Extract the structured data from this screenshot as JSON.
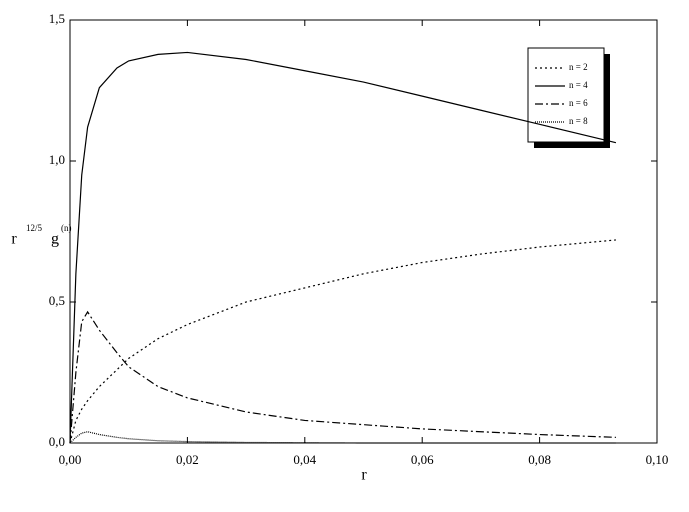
{
  "chart_data": {
    "type": "line",
    "x_label": "r",
    "y_label": {
      "base": "r",
      "power": "12/5",
      "func": "g",
      "func_power": "(n)"
    },
    "x": [
      0,
      0.001,
      0.002,
      0.003,
      0.005,
      0.008,
      0.01,
      0.015,
      0.02,
      0.03,
      0.04,
      0.05,
      0.06,
      0.07,
      0.08,
      0.093
    ],
    "series": [
      {
        "name": "n = 2",
        "color": "#000000",
        "dash": "2,3",
        "values": [
          0,
          0.08,
          0.12,
          0.15,
          0.2,
          0.26,
          0.3,
          0.37,
          0.42,
          0.5,
          0.55,
          0.6,
          0.64,
          0.67,
          0.695,
          0.72
        ]
      },
      {
        "name": "n = 4",
        "color": "#000000",
        "dash": "none",
        "values": [
          0,
          0.6,
          0.95,
          1.12,
          1.26,
          1.33,
          1.355,
          1.378,
          1.385,
          1.36,
          1.32,
          1.28,
          1.23,
          1.18,
          1.13,
          1.065
        ]
      },
      {
        "name": "n = 6",
        "color": "#000000",
        "dash": "8,3,2,3",
        "values": [
          0,
          0.25,
          0.43,
          0.465,
          0.4,
          0.32,
          0.27,
          0.2,
          0.16,
          0.11,
          0.08,
          0.065,
          0.05,
          0.04,
          0.03,
          0.02
        ]
      },
      {
        "name": "n = 8",
        "color": "#000000",
        "dash": "1,1",
        "values": [
          0,
          0.02,
          0.035,
          0.04,
          0.03,
          0.02,
          0.015,
          0.008,
          0.005,
          0.002,
          0.001,
          0,
          0,
          0,
          0,
          0
        ]
      }
    ],
    "xlim": [
      0,
      0.1
    ],
    "xticks": [
      {
        "value": 0,
        "label": "0,00"
      },
      {
        "value": 0.02,
        "label": "0,02"
      },
      {
        "value": 0.04,
        "label": "0,04"
      },
      {
        "value": 0.06,
        "label": "0,06"
      },
      {
        "value": 0.08,
        "label": "0,08"
      },
      {
        "value": 0.1,
        "label": "0,10"
      }
    ],
    "ylim": [
      0,
      1.5
    ],
    "yticks": [
      {
        "value": 0,
        "label": "0,0"
      },
      {
        "value": 0.5,
        "label": "0,5"
      },
      {
        "value": 1,
        "label": "1,0"
      },
      {
        "value": 1.5,
        "label": "1,5"
      }
    ],
    "legend": "upper-right"
  }
}
